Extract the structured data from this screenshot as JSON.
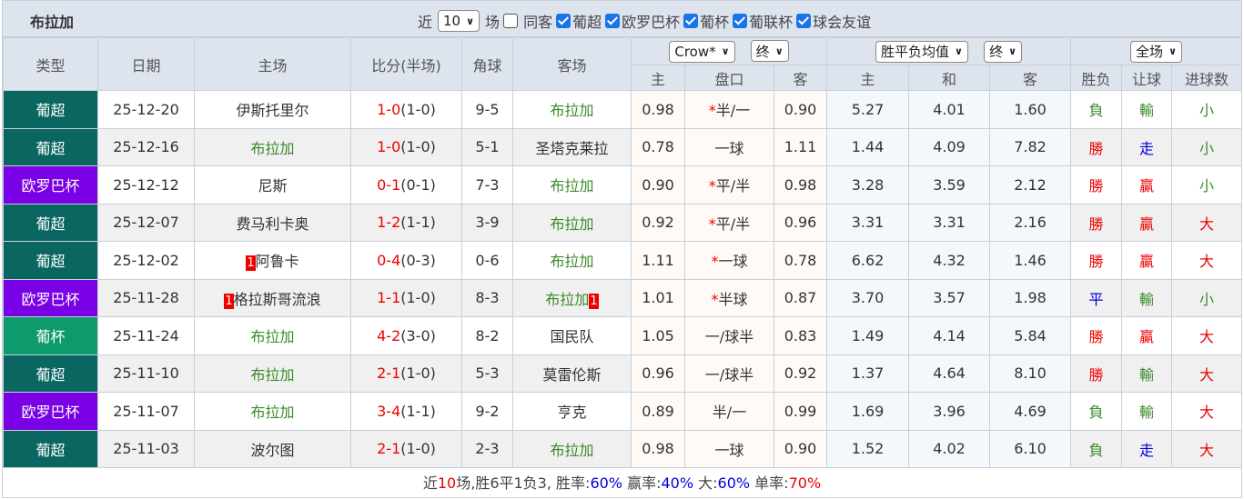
{
  "header": {
    "team": "布拉加",
    "near_label": "近",
    "count": "10",
    "games_label": "场",
    "same_away": "同客",
    "same_away_checked": false,
    "leagues": [
      {
        "label": "葡超",
        "checked": true
      },
      {
        "label": "欧罗巴杯",
        "checked": true
      },
      {
        "label": "葡杯",
        "checked": true
      },
      {
        "label": "葡联杯",
        "checked": true
      },
      {
        "label": "球会友谊",
        "checked": true
      }
    ]
  },
  "columns": {
    "type": "类型",
    "date": "日期",
    "home": "主场",
    "score": "比分(半场)",
    "corner": "角球",
    "away": "客场",
    "company": "Crow*",
    "ah_stage": "终",
    "eu_company": "胜平负均值",
    "eu_stage": "终",
    "scope": "全场",
    "sub": [
      "主",
      "盘口",
      "客",
      "主",
      "和",
      "客",
      "胜负",
      "让球",
      "进球数"
    ]
  },
  "colors": {
    "葡超": "#0a6660",
    "欧罗巴杯": "#7a00e6",
    "葡杯": "#0d9a6c"
  },
  "rows": [
    {
      "type": "葡超",
      "date": "25-12-20",
      "home": "伊斯托里尔",
      "home_rc": "",
      "home_is_team": false,
      "ft": "1-0",
      "ht": "(1-0)",
      "corner": "9-5",
      "away": "布拉加",
      "away_rc": "",
      "away_is_team": true,
      "oh": "0.98",
      "hcp": "半/一",
      "star": true,
      "oa": "0.90",
      "e1": "5.27",
      "e2": "4.01",
      "e3": "1.60",
      "wl": "負",
      "ah": "輸",
      "ou": "小"
    },
    {
      "type": "葡超",
      "date": "25-12-16",
      "home": "布拉加",
      "home_rc": "",
      "home_is_team": true,
      "ft": "1-0",
      "ht": "(1-0)",
      "corner": "5-1",
      "away": "圣塔克莱拉",
      "away_rc": "",
      "away_is_team": false,
      "oh": "0.78",
      "hcp": "一球",
      "star": false,
      "oa": "1.11",
      "e1": "1.44",
      "e2": "4.09",
      "e3": "7.82",
      "wl": "勝",
      "ah": "走",
      "ou": "小"
    },
    {
      "type": "欧罗巴杯",
      "date": "25-12-12",
      "home": "尼斯",
      "home_rc": "",
      "home_is_team": false,
      "ft": "0-1",
      "ht": "(0-1)",
      "corner": "7-3",
      "away": "布拉加",
      "away_rc": "",
      "away_is_team": true,
      "oh": "0.90",
      "hcp": "平/半",
      "star": true,
      "oa": "0.98",
      "e1": "3.28",
      "e2": "3.59",
      "e3": "2.12",
      "wl": "勝",
      "ah": "贏",
      "ou": "小"
    },
    {
      "type": "葡超",
      "date": "25-12-07",
      "home": "费马利卡奥",
      "home_rc": "",
      "home_is_team": false,
      "ft": "1-2",
      "ht": "(1-1)",
      "corner": "3-9",
      "away": "布拉加",
      "away_rc": "",
      "away_is_team": true,
      "oh": "0.92",
      "hcp": "平/半",
      "star": true,
      "oa": "0.96",
      "e1": "3.31",
      "e2": "3.31",
      "e3": "2.16",
      "wl": "勝",
      "ah": "贏",
      "ou": "大"
    },
    {
      "type": "葡超",
      "date": "25-12-02",
      "home": "阿鲁卡",
      "home_rc": "1",
      "home_is_team": false,
      "ft": "0-4",
      "ht": "(0-3)",
      "corner": "0-6",
      "away": "布拉加",
      "away_rc": "",
      "away_is_team": true,
      "oh": "1.11",
      "hcp": "一球",
      "star": true,
      "oa": "0.78",
      "e1": "6.62",
      "e2": "4.32",
      "e3": "1.46",
      "wl": "勝",
      "ah": "贏",
      "ou": "大"
    },
    {
      "type": "欧罗巴杯",
      "date": "25-11-28",
      "home": "格拉斯哥流浪",
      "home_rc": "1",
      "home_is_team": false,
      "ft": "1-1",
      "ht": "(1-0)",
      "corner": "8-3",
      "away": "布拉加",
      "away_rc": "1",
      "away_is_team": true,
      "oh": "1.01",
      "hcp": "半球",
      "star": true,
      "oa": "0.87",
      "e1": "3.70",
      "e2": "3.57",
      "e3": "1.98",
      "wl": "平",
      "ah": "輸",
      "ou": "小"
    },
    {
      "type": "葡杯",
      "date": "25-11-24",
      "home": "布拉加",
      "home_rc": "",
      "home_is_team": true,
      "ft": "4-2",
      "ht": "(3-0)",
      "corner": "8-2",
      "away": "国民队",
      "away_rc": "",
      "away_is_team": false,
      "oh": "1.05",
      "hcp": "一/球半",
      "star": false,
      "oa": "0.83",
      "e1": "1.49",
      "e2": "4.14",
      "e3": "5.84",
      "wl": "勝",
      "ah": "贏",
      "ou": "大"
    },
    {
      "type": "葡超",
      "date": "25-11-10",
      "home": "布拉加",
      "home_rc": "",
      "home_is_team": true,
      "ft": "2-1",
      "ht": "(1-0)",
      "corner": "5-3",
      "away": "莫雷伦斯",
      "away_rc": "",
      "away_is_team": false,
      "oh": "0.96",
      "hcp": "一/球半",
      "star": false,
      "oa": "0.92",
      "e1": "1.37",
      "e2": "4.64",
      "e3": "8.10",
      "wl": "勝",
      "ah": "輸",
      "ou": "大"
    },
    {
      "type": "欧罗巴杯",
      "date": "25-11-07",
      "home": "布拉加",
      "home_rc": "",
      "home_is_team": true,
      "ft": "3-4",
      "ht": "(1-1)",
      "corner": "9-2",
      "away": "亨克",
      "away_rc": "",
      "away_is_team": false,
      "oh": "0.89",
      "hcp": "半/一",
      "star": false,
      "oa": "0.99",
      "e1": "1.69",
      "e2": "3.96",
      "e3": "4.69",
      "wl": "負",
      "ah": "輸",
      "ou": "大"
    },
    {
      "type": "葡超",
      "date": "25-11-03",
      "home": "波尔图",
      "home_rc": "",
      "home_is_team": false,
      "ft": "2-1",
      "ht": "(1-0)",
      "corner": "2-3",
      "away": "布拉加",
      "away_rc": "",
      "away_is_team": true,
      "oh": "0.98",
      "hcp": "一球",
      "star": false,
      "oa": "0.90",
      "e1": "1.52",
      "e2": "4.02",
      "e3": "6.10",
      "wl": "負",
      "ah": "走",
      "ou": "大"
    }
  ],
  "footer": {
    "p1": "近",
    "n": "10",
    "p2": "场,胜6平1负3, 胜率:",
    "win": "60%",
    "p3": " 赢率:",
    "cover": "40%",
    "p4": " 大:",
    "over": "60%",
    "p5": " 单率:",
    "odd": "70%"
  }
}
